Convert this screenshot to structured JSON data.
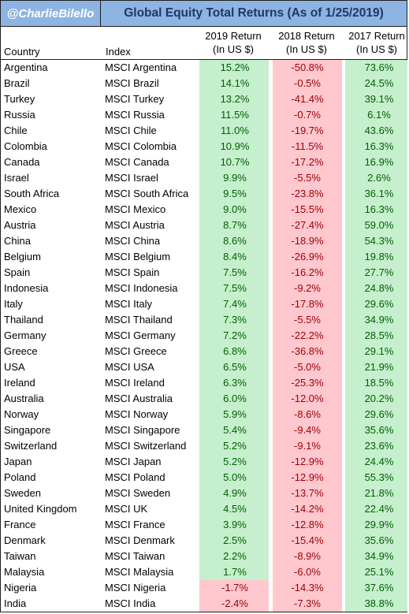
{
  "handle": "@CharlieBilello",
  "title": "Global Equity Total Returns (As of  1/25/2019)",
  "headers": {
    "country": "Country",
    "index": "Index",
    "r2019_l1": "2019 Return",
    "r2019_l2": "(In US $)",
    "r2018_l1": "2018 Return",
    "r2018_l2": "(In US $)",
    "r2017_l1": "2017 Return",
    "r2017_l2": "(In US $)"
  },
  "colors": {
    "header_bg": "#8db4e2",
    "positive_bg": "#c6efce",
    "positive_text": "#006100",
    "negative_bg": "#ffc7ce",
    "negative_text": "#9c0006"
  },
  "rows": [
    {
      "country": "Argentina",
      "index": "MSCI Argentina",
      "r2019": "15.2%",
      "r2018": "-50.8%",
      "r2017": "73.6%"
    },
    {
      "country": "Brazil",
      "index": "MSCI Brazil",
      "r2019": "14.1%",
      "r2018": "-0.5%",
      "r2017": "24.5%"
    },
    {
      "country": "Turkey",
      "index": "MSCI Turkey",
      "r2019": "13.2%",
      "r2018": "-41.4%",
      "r2017": "39.1%"
    },
    {
      "country": "Russia",
      "index": "MSCI Russia",
      "r2019": "11.5%",
      "r2018": "-0.7%",
      "r2017": "6.1%"
    },
    {
      "country": "Chile",
      "index": "MSCI Chile",
      "r2019": "11.0%",
      "r2018": "-19.7%",
      "r2017": "43.6%"
    },
    {
      "country": "Colombia",
      "index": "MSCI Colombia",
      "r2019": "10.9%",
      "r2018": "-11.5%",
      "r2017": "16.3%"
    },
    {
      "country": "Canada",
      "index": "MSCI Canada",
      "r2019": "10.7%",
      "r2018": "-17.2%",
      "r2017": "16.9%"
    },
    {
      "country": "Israel",
      "index": "MSCI Israel",
      "r2019": "9.9%",
      "r2018": "-5.5%",
      "r2017": "2.6%"
    },
    {
      "country": "South Africa",
      "index": "MSCI South Africa",
      "r2019": "9.5%",
      "r2018": "-23.8%",
      "r2017": "36.1%"
    },
    {
      "country": "Mexico",
      "index": "MSCI Mexico",
      "r2019": "9.0%",
      "r2018": "-15.5%",
      "r2017": "16.3%"
    },
    {
      "country": "Austria",
      "index": "MSCI Austria",
      "r2019": "8.7%",
      "r2018": "-27.4%",
      "r2017": "59.0%"
    },
    {
      "country": "China",
      "index": "MSCI China",
      "r2019": "8.6%",
      "r2018": "-18.9%",
      "r2017": "54.3%"
    },
    {
      "country": "Belgium",
      "index": "MSCI Belgium",
      "r2019": "8.4%",
      "r2018": "-26.9%",
      "r2017": "19.8%"
    },
    {
      "country": "Spain",
      "index": "MSCI Spain",
      "r2019": "7.5%",
      "r2018": "-16.2%",
      "r2017": "27.7%"
    },
    {
      "country": "Indonesia",
      "index": "MSCI Indonesia",
      "r2019": "7.5%",
      "r2018": "-9.2%",
      "r2017": "24.8%"
    },
    {
      "country": "Italy",
      "index": "MSCI Italy",
      "r2019": "7.4%",
      "r2018": "-17.8%",
      "r2017": "29.6%"
    },
    {
      "country": "Thailand",
      "index": "MSCI Thailand",
      "r2019": "7.3%",
      "r2018": "-5.5%",
      "r2017": "34.9%"
    },
    {
      "country": "Germany",
      "index": "MSCI Germany",
      "r2019": "7.2%",
      "r2018": "-22.2%",
      "r2017": "28.5%"
    },
    {
      "country": "Greece",
      "index": "MSCI Greece",
      "r2019": "6.8%",
      "r2018": "-36.8%",
      "r2017": "29.1%"
    },
    {
      "country": "USA",
      "index": "MSCI USA",
      "r2019": "6.5%",
      "r2018": "-5.0%",
      "r2017": "21.9%"
    },
    {
      "country": "Ireland",
      "index": "MSCI Ireland",
      "r2019": "6.3%",
      "r2018": "-25.3%",
      "r2017": "18.5%"
    },
    {
      "country": "Australia",
      "index": "MSCI Australia",
      "r2019": "6.0%",
      "r2018": "-12.0%",
      "r2017": "20.2%"
    },
    {
      "country": "Norway",
      "index": "MSCI Norway",
      "r2019": "5.9%",
      "r2018": "-8.6%",
      "r2017": "29.6%"
    },
    {
      "country": "Singapore",
      "index": "MSCI Singapore",
      "r2019": "5.4%",
      "r2018": "-9.4%",
      "r2017": "35.6%"
    },
    {
      "country": "Switzerland",
      "index": "MSCI Switzerland",
      "r2019": "5.2%",
      "r2018": "-9.1%",
      "r2017": "23.6%"
    },
    {
      "country": "Japan",
      "index": "MSCI Japan",
      "r2019": "5.2%",
      "r2018": "-12.9%",
      "r2017": "24.4%"
    },
    {
      "country": "Poland",
      "index": "MSCI Poland",
      "r2019": "5.0%",
      "r2018": "-12.9%",
      "r2017": "55.3%"
    },
    {
      "country": "Sweden",
      "index": "MSCI Sweden",
      "r2019": "4.9%",
      "r2018": "-13.7%",
      "r2017": "21.8%"
    },
    {
      "country": "United Kingdom",
      "index": "MSCI UK",
      "r2019": "4.5%",
      "r2018": "-14.2%",
      "r2017": "22.4%"
    },
    {
      "country": "France",
      "index": "MSCI France",
      "r2019": "3.9%",
      "r2018": "-12.8%",
      "r2017": "29.9%"
    },
    {
      "country": "Denmark",
      "index": "MSCI Denmark",
      "r2019": "2.5%",
      "r2018": "-15.4%",
      "r2017": "35.6%"
    },
    {
      "country": "Taiwan",
      "index": "MSCI Taiwan",
      "r2019": "2.2%",
      "r2018": "-8.9%",
      "r2017": "34.9%"
    },
    {
      "country": "Malaysia",
      "index": "MSCI Malaysia",
      "r2019": "1.7%",
      "r2018": "-6.0%",
      "r2017": "25.1%"
    },
    {
      "country": "Nigeria",
      "index": "MSCI Nigeria",
      "r2019": "-1.7%",
      "r2018": "-14.3%",
      "r2017": "37.6%"
    },
    {
      "country": "India",
      "index": "MSCI India",
      "r2019": "-2.4%",
      "r2018": "-7.3%",
      "r2017": "38.8%"
    }
  ]
}
